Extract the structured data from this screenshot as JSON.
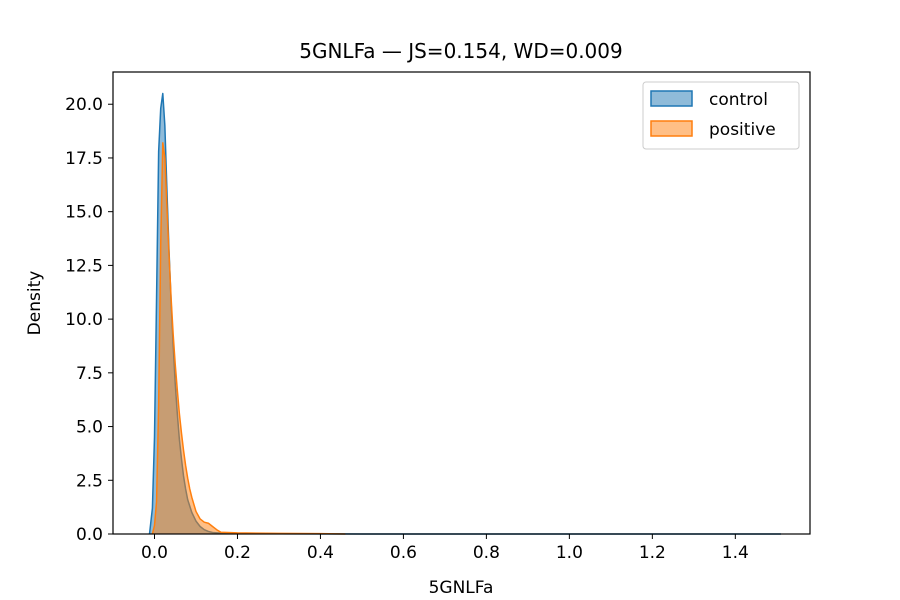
{
  "chart_data": {
    "type": "area",
    "title": "5GNLFa — JS=0.154, WD=0.009",
    "xlabel": "5GNLFa",
    "ylabel": "Density",
    "xlim": [
      -0.1,
      1.58
    ],
    "ylim": [
      0,
      21.5
    ],
    "x_ticks": [
      0.0,
      0.2,
      0.4,
      0.6,
      0.8,
      1.0,
      1.2,
      1.4
    ],
    "x_tick_labels": [
      "0.0",
      "0.2",
      "0.4",
      "0.6",
      "0.8",
      "1.0",
      "1.2",
      "1.4"
    ],
    "y_ticks": [
      0.0,
      2.5,
      5.0,
      7.5,
      10.0,
      12.5,
      15.0,
      17.5,
      20.0
    ],
    "y_tick_labels": [
      "0.0",
      "2.5",
      "5.0",
      "7.5",
      "10.0",
      "12.5",
      "15.0",
      "17.5",
      "20.0"
    ],
    "grid": false,
    "legend_position": "top-right",
    "series": [
      {
        "name": "control",
        "color": "#1f77b4",
        "x": [
          -0.012,
          -0.005,
          0.0,
          0.005,
          0.01,
          0.015,
          0.02,
          0.025,
          0.03,
          0.035,
          0.04,
          0.045,
          0.05,
          0.055,
          0.06,
          0.065,
          0.07,
          0.075,
          0.08,
          0.09,
          0.1,
          0.11,
          0.12,
          0.13,
          0.14,
          0.16,
          0.2,
          0.3,
          0.5,
          1.0,
          1.51
        ],
        "y": [
          0.0,
          1.2,
          4.5,
          11.0,
          17.8,
          19.8,
          20.5,
          19.0,
          16.0,
          13.2,
          10.8,
          8.8,
          7.0,
          5.6,
          4.4,
          3.5,
          2.7,
          2.1,
          1.6,
          1.0,
          0.6,
          0.35,
          0.2,
          0.12,
          0.07,
          0.04,
          0.02,
          0.01,
          0.0,
          0.0,
          0.0
        ]
      },
      {
        "name": "positive",
        "color": "#ff7f0e",
        "x": [
          -0.005,
          0.0,
          0.005,
          0.01,
          0.015,
          0.02,
          0.025,
          0.03,
          0.035,
          0.04,
          0.045,
          0.05,
          0.055,
          0.06,
          0.065,
          0.07,
          0.075,
          0.08,
          0.085,
          0.09,
          0.1,
          0.11,
          0.12,
          0.13,
          0.14,
          0.15,
          0.16,
          0.2,
          0.3,
          0.4,
          0.46
        ],
        "y": [
          0.0,
          0.4,
          1.5,
          6.0,
          13.5,
          18.2,
          17.5,
          15.2,
          13.0,
          11.0,
          9.3,
          7.9,
          6.7,
          5.6,
          4.7,
          3.9,
          3.2,
          2.6,
          2.1,
          1.7,
          1.05,
          0.7,
          0.55,
          0.5,
          0.35,
          0.2,
          0.08,
          0.05,
          0.03,
          0.02,
          0.0
        ]
      }
    ]
  }
}
